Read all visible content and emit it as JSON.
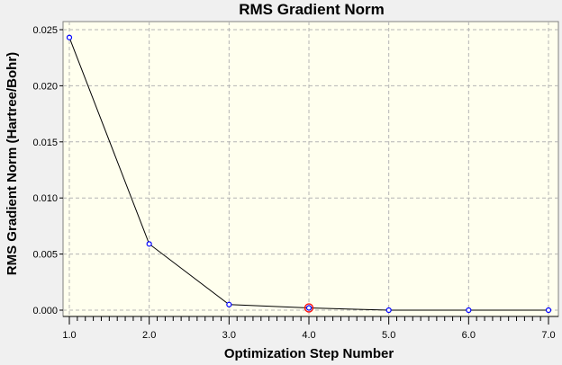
{
  "chart_data": {
    "type": "line",
    "title": "RMS Gradient Norm",
    "xlabel": "Optimization Step Number",
    "ylabel": "RMS Gradient Norm (Hartree/Bohr)",
    "x": [
      1,
      2,
      3,
      4,
      5,
      6,
      7
    ],
    "y": [
      0.0243,
      0.0059,
      0.0005,
      0.0002,
      0.0,
      0.0,
      0.0
    ],
    "xlim": [
      1.0,
      7.0
    ],
    "ylim": [
      0.0,
      0.025
    ],
    "xticks": [
      "1.0",
      "2.0",
      "3.0",
      "4.0",
      "5.0",
      "6.0",
      "7.0"
    ],
    "yticks": [
      "0.000",
      "0.005",
      "0.010",
      "0.015",
      "0.020",
      "0.025"
    ],
    "ytick_values": [
      0.0,
      0.005,
      0.01,
      0.015,
      0.02,
      0.025
    ],
    "highlighted_point_index": 3,
    "grid": true,
    "colors": {
      "window_bg": "#f0f0f0",
      "plot_bg": "#ffffee",
      "grid": "#b4b4b4",
      "line": "#000000",
      "marker": "#0000ff",
      "highlight": "#ff0000"
    }
  }
}
